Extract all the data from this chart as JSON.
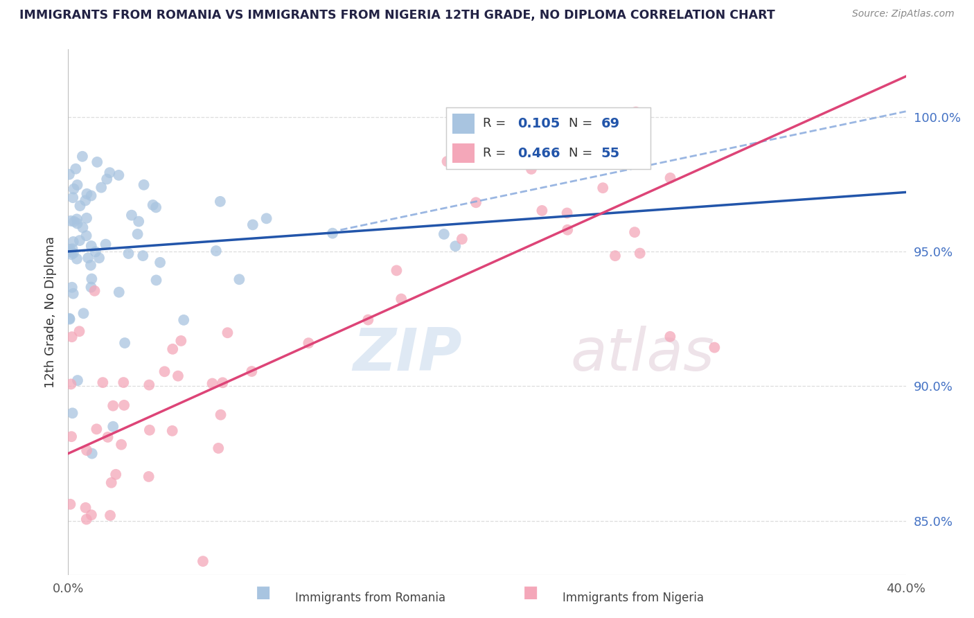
{
  "title": "IMMIGRANTS FROM ROMANIA VS IMMIGRANTS FROM NIGERIA 12TH GRADE, NO DIPLOMA CORRELATION CHART",
  "source": "Source: ZipAtlas.com",
  "ylabel_label": "12th Grade, No Diploma",
  "legend1_R": "0.105",
  "legend1_N": "69",
  "legend2_R": "0.466",
  "legend2_N": "55",
  "legend1_label": "Immigrants from Romania",
  "legend2_label": "Immigrants from Nigeria",
  "romania_color": "#a8c4e0",
  "nigeria_color": "#f4a7b9",
  "romania_line_color": "#2255aa",
  "nigeria_line_color": "#dd4477",
  "dashed_line_color": "#88aadd",
  "title_color": "#222244",
  "source_color": "#888888",
  "axis_label_color": "#333333",
  "tick_color": "#4472c4",
  "grid_color": "#dddddd",
  "xmin": 0.0,
  "xmax": 40.0,
  "ymin": 83.0,
  "ymax": 102.5,
  "yticks": [
    85.0,
    90.0,
    95.0,
    100.0
  ],
  "ytick_labels": [
    "85.0%",
    "90.0%",
    "95.0%",
    "100.0%"
  ],
  "romania_line_x0": 0.0,
  "romania_line_y0": 95.0,
  "romania_line_x1": 40.0,
  "romania_line_y1": 97.2,
  "nigeria_line_x0": 0.0,
  "nigeria_line_y0": 87.5,
  "nigeria_line_x1": 40.0,
  "nigeria_line_y1": 101.5,
  "dashed_line_x0": 13.0,
  "dashed_line_y0": 95.8,
  "dashed_line_x1": 40.0,
  "dashed_line_y1": 100.2
}
